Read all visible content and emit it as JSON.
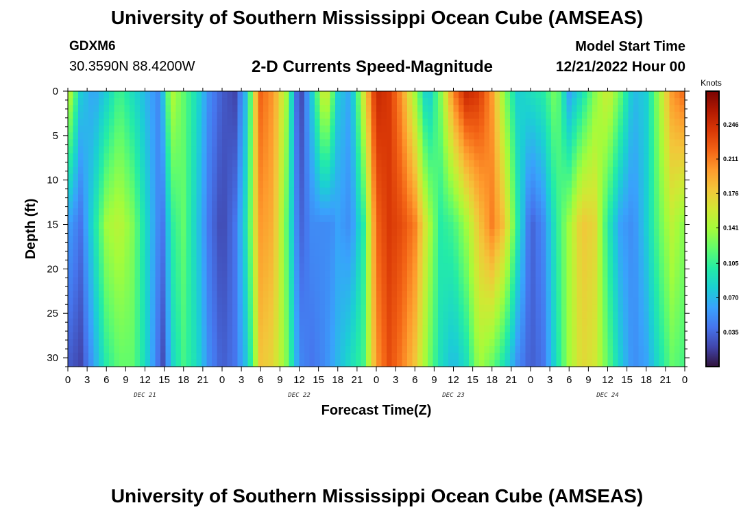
{
  "page": {
    "title": "University of Southern Mississippi Ocean Cube (AMSEAS)",
    "station": "GDXM6",
    "coordinates": "30.3590N  88.4200W",
    "subtitle": "2-D Currents Speed-Magnitude",
    "model_start_label": "Model Start Time",
    "model_start_value": "12/21/2022 Hour 00",
    "footer_title": "University of Southern Mississippi Ocean Cube (AMSEAS)"
  },
  "chart_data": {
    "type": "heatmap",
    "title": "2-D Currents Speed-Magnitude",
    "xlabel": "Forecast Time(Z)",
    "ylabel": "Depth (ft)",
    "x_range_hours": [
      0,
      96
    ],
    "y_range_ft": [
      0,
      31
    ],
    "x_tick_labels": [
      "0",
      "3",
      "6",
      "9",
      "12",
      "15",
      "18",
      "21",
      "0",
      "3",
      "6",
      "9",
      "12",
      "15",
      "18",
      "21",
      "0",
      "3",
      "6",
      "9",
      "12",
      "15",
      "18",
      "21",
      "0",
      "3",
      "6",
      "9",
      "12",
      "15",
      "18",
      "21",
      "0"
    ],
    "day_labels": [
      {
        "text": "DEC 21",
        "hour": 12
      },
      {
        "text": "DEC 22",
        "hour": 36
      },
      {
        "text": "DEC 23",
        "hour": 60
      },
      {
        "text": "DEC 24",
        "hour": 84
      }
    ],
    "y_ticks": [
      0,
      5,
      10,
      15,
      20,
      25,
      30
    ],
    "colorbar": {
      "units": "Knots",
      "range": [
        0,
        0.28
      ],
      "tick_labels": [
        "0.035",
        "0.070",
        "0.105",
        "0.141",
        "0.176",
        "0.211",
        "0.246"
      ],
      "colormap": [
        "#30123b",
        "#4145ab",
        "#4675ed",
        "#39a2fc",
        "#1bcfd4",
        "#24eca6",
        "#61fc6c",
        "#a4fc3b",
        "#d1e834",
        "#f3c63a",
        "#fe9b2d",
        "#f36315",
        "#d93806",
        "#b11901",
        "#7a0403"
      ]
    },
    "speed_knots_by_hour": {
      "description": "Approximate current speed at surface / 15 ft / bottom (31 ft) for each forecast hour",
      "hours": [
        0,
        2,
        4,
        6,
        8,
        10,
        12,
        14,
        15,
        16,
        18,
        20,
        22,
        24,
        26,
        28,
        29,
        30,
        32,
        34,
        36,
        38,
        40,
        41,
        42,
        44,
        46,
        48,
        50,
        52,
        54,
        56,
        58,
        60,
        62,
        64,
        66,
        68,
        70,
        72,
        74,
        76,
        78,
        80,
        82,
        84,
        86,
        88,
        90,
        92,
        94,
        96
      ],
      "surface": [
        0.16,
        0.08,
        0.06,
        0.08,
        0.11,
        0.09,
        0.07,
        0.05,
        0.08,
        0.15,
        0.12,
        0.09,
        0.05,
        0.03,
        0.02,
        0.08,
        0.17,
        0.22,
        0.2,
        0.14,
        0.01,
        0.08,
        0.17,
        0.13,
        0.08,
        0.06,
        0.16,
        0.25,
        0.24,
        0.2,
        0.14,
        0.07,
        0.13,
        0.21,
        0.25,
        0.24,
        0.2,
        0.13,
        0.08,
        0.09,
        0.1,
        0.13,
        0.06,
        0.09,
        0.13,
        0.16,
        0.12,
        0.07,
        0.08,
        0.14,
        0.2,
        0.22
      ],
      "depth_15ft": [
        0.06,
        0.04,
        0.09,
        0.14,
        0.15,
        0.13,
        0.09,
        0.05,
        0.04,
        0.1,
        0.12,
        0.08,
        0.04,
        0.02,
        0.04,
        0.1,
        0.16,
        0.2,
        0.19,
        0.12,
        0.03,
        0.05,
        0.05,
        0.05,
        0.06,
        0.05,
        0.1,
        0.22,
        0.24,
        0.23,
        0.21,
        0.15,
        0.1,
        0.11,
        0.14,
        0.18,
        0.21,
        0.18,
        0.1,
        0.03,
        0.05,
        0.1,
        0.14,
        0.18,
        0.17,
        0.1,
        0.06,
        0.05,
        0.08,
        0.12,
        0.15,
        0.13
      ],
      "bottom": [
        0.03,
        0.02,
        0.06,
        0.1,
        0.12,
        0.12,
        0.09,
        0.04,
        0.02,
        0.08,
        0.11,
        0.09,
        0.05,
        0.03,
        0.04,
        0.08,
        0.13,
        0.18,
        0.17,
        0.13,
        0.05,
        0.04,
        0.05,
        0.06,
        0.07,
        0.09,
        0.11,
        0.2,
        0.23,
        0.21,
        0.18,
        0.13,
        0.09,
        0.07,
        0.09,
        0.14,
        0.12,
        0.09,
        0.05,
        0.03,
        0.04,
        0.09,
        0.14,
        0.17,
        0.16,
        0.12,
        0.08,
        0.05,
        0.06,
        0.09,
        0.12,
        0.11
      ]
    }
  }
}
